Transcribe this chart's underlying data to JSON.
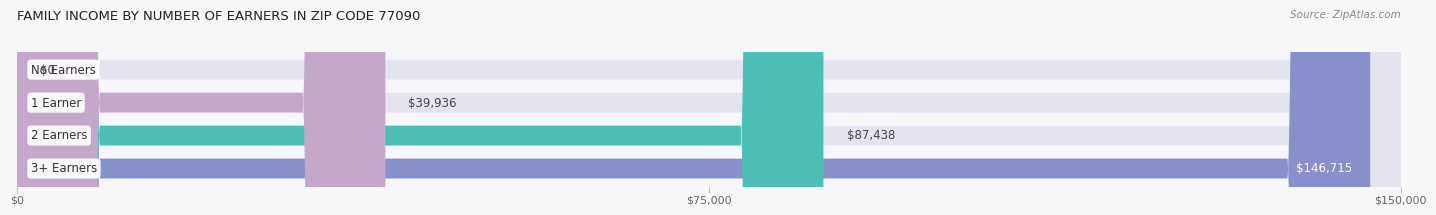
{
  "title": "FAMILY INCOME BY NUMBER OF EARNERS IN ZIP CODE 77090",
  "source": "Source: ZipAtlas.com",
  "categories": [
    "No Earners",
    "1 Earner",
    "2 Earners",
    "3+ Earners"
  ],
  "values": [
    0,
    39936,
    87438,
    146715
  ],
  "max_value": 150000,
  "bar_colors": [
    "#a8c0e0",
    "#c4a8cc",
    "#4ebfb4",
    "#8890cc"
  ],
  "bar_bg_color": "#e4e4ee",
  "value_labels": [
    "$0",
    "$39,936",
    "$87,438",
    "$146,715"
  ],
  "x_ticks": [
    0,
    75000,
    150000
  ],
  "x_tick_labels": [
    "$0",
    "$75,000",
    "$150,000"
  ],
  "background_color": "#f7f7fa",
  "fig_width": 14.06,
  "fig_height": 2.33,
  "title_fontsize": 9.5,
  "source_fontsize": 7.5,
  "label_fontsize": 8.5,
  "tick_fontsize": 8,
  "value_label_inside_color": "white",
  "value_label_outside_color": "#444444"
}
